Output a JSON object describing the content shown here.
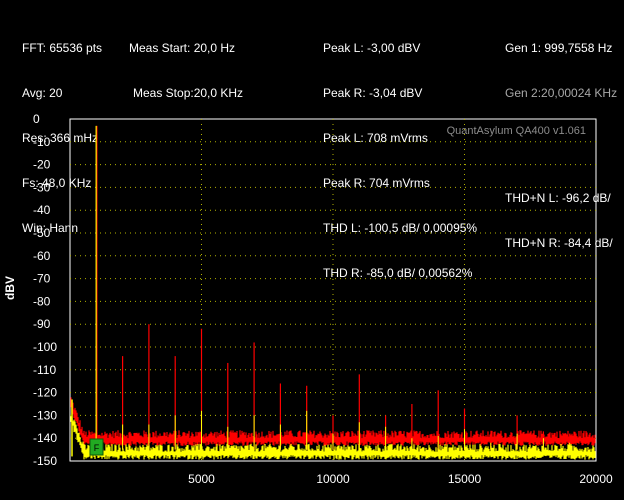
{
  "header": {
    "col1": [
      "FFT: 65536 pts",
      "Avg: 20",
      "Res: 366 mHz",
      "Fs: 48,0 KHz",
      "Win: Hann"
    ],
    "col2": [
      "Meas Start: 20,0 Hz",
      "Meas Stop:20,0 KHz"
    ],
    "col3": [
      "Peak L: -3,00 dBV",
      "Peak R: -3,04 dBV",
      "Peak L: 708 mVrms",
      "Peak R: 704 mVrms",
      "THD L: -100,5 dB/ 0,00095%",
      "THD R: -85,0 dB/ 0,00562%"
    ],
    "col4_gen": [
      "Gen 1: 999,7558 Hz",
      "Gen 2:20,00024 KHz"
    ],
    "col4_thdn": [
      "THD+N L: -96,2 dB/",
      "THD+N R: -84,4 dB/"
    ]
  },
  "colors": {
    "left": "#ffff00",
    "right": "#ff0000",
    "grid": "#b2b200",
    "marker": "#22aa22"
  },
  "chart_data": {
    "type": "line",
    "watermark": "QuantAsylum QA400 v1.061",
    "xlabel": "",
    "ylabel": "dBV",
    "xlim": [
      0,
      20000
    ],
    "ylim": [
      -150,
      0
    ],
    "x_ticks": [
      5000,
      10000,
      15000,
      20000
    ],
    "y_ticks": [
      0,
      -10,
      -20,
      -30,
      -40,
      -50,
      -60,
      -70,
      -80,
      -90,
      -100,
      -110,
      -120,
      -130,
      -140,
      -150
    ],
    "grid": true,
    "marker_label": "F",
    "noise_floor": {
      "left": -146,
      "right": -140
    },
    "series": [
      {
        "channel": "left",
        "peaks": [
          [
            1000,
            -3
          ],
          [
            2000,
            -134
          ],
          [
            3000,
            -134
          ],
          [
            4000,
            -130
          ],
          [
            5000,
            -128
          ],
          [
            6000,
            -135
          ],
          [
            7000,
            -130
          ],
          [
            8000,
            -134
          ],
          [
            9000,
            -128
          ],
          [
            10000,
            -138
          ],
          [
            11000,
            -133
          ],
          [
            12000,
            -135
          ],
          [
            13000,
            -140
          ],
          [
            14000,
            -139
          ],
          [
            15000,
            -136
          ],
          [
            16000,
            -142
          ],
          [
            17000,
            -138
          ],
          [
            18000,
            -140
          ],
          [
            19000,
            -142
          ]
        ]
      },
      {
        "channel": "right",
        "peaks": [
          [
            1000,
            -3
          ],
          [
            2000,
            -104
          ],
          [
            3000,
            -90
          ],
          [
            4000,
            -104
          ],
          [
            5000,
            -92
          ],
          [
            6000,
            -107
          ],
          [
            7000,
            -98
          ],
          [
            8000,
            -116
          ],
          [
            9000,
            -117
          ],
          [
            10000,
            -130
          ],
          [
            11000,
            -112
          ],
          [
            12000,
            -130
          ],
          [
            13000,
            -125
          ],
          [
            14000,
            -119
          ],
          [
            15000,
            -127
          ],
          [
            16000,
            -138
          ],
          [
            17000,
            -130
          ],
          [
            18000,
            -137
          ],
          [
            19000,
            -138
          ]
        ]
      }
    ]
  }
}
